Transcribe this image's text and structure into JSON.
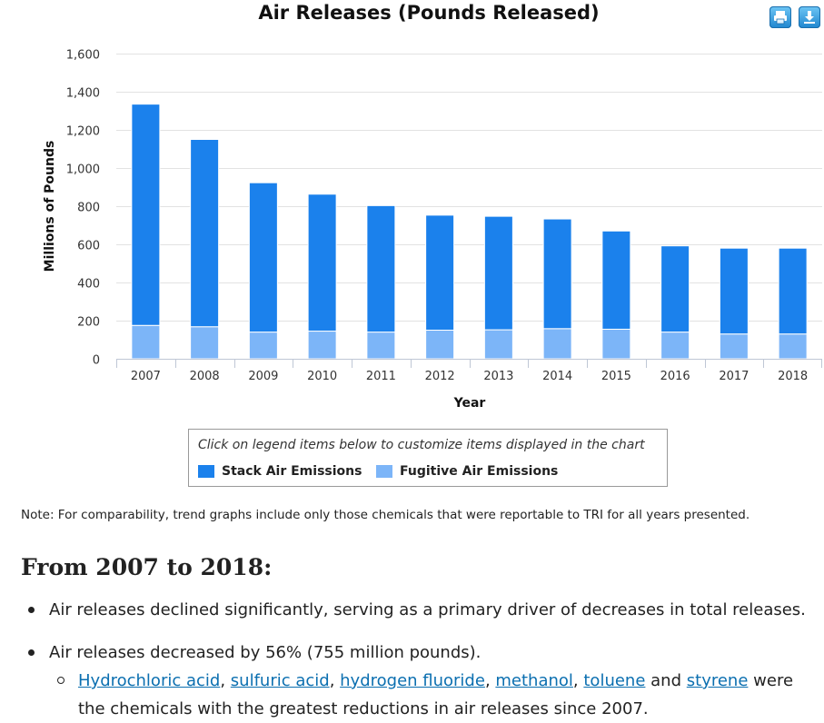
{
  "chart_data": {
    "type": "bar",
    "stacked": true,
    "title": "Air Releases (Pounds Released)",
    "xlabel": "Year",
    "ylabel": "Millions of Pounds",
    "ylim": [
      0,
      1600
    ],
    "yticks": [
      0,
      200,
      400,
      600,
      800,
      1000,
      1200,
      1400,
      1600
    ],
    "ytick_labels": [
      "0",
      "200",
      "400",
      "600",
      "800",
      "1,000",
      "1,200",
      "1,400",
      "1,600"
    ],
    "categories": [
      "2007",
      "2008",
      "2009",
      "2010",
      "2011",
      "2012",
      "2013",
      "2014",
      "2015",
      "2016",
      "2017",
      "2018"
    ],
    "series": [
      {
        "name": "Fugitive Air Emissions",
        "color": "#7cb5f8",
        "values": [
          175,
          168,
          140,
          145,
          140,
          150,
          152,
          158,
          155,
          140,
          130,
          130
        ]
      },
      {
        "name": "Stack Air Emissions",
        "color": "#1b81ec",
        "values": [
          1160,
          982,
          783,
          718,
          663,
          603,
          595,
          575,
          515,
          452,
          450,
          450
        ]
      }
    ],
    "grid": true,
    "legend_position": "bottom"
  },
  "toolbar": {
    "print_icon": "print-icon",
    "download_icon": "download-icon"
  },
  "legend": {
    "hint": "Click on legend items below to customize items displayed in the chart",
    "items": [
      {
        "label": "Stack Air Emissions",
        "color": "#1b81ec"
      },
      {
        "label": "Fugitive Air Emissions",
        "color": "#7cb5f8"
      }
    ]
  },
  "note": "Note: For comparability, trend graphs include only those chemicals that were reportable to TRI for all years presented.",
  "section": {
    "heading": "From 2007 to 2018:",
    "bullet1": "Air releases declined significantly, serving as a primary driver of decreases in total releases.",
    "bullet2": "Air releases decreased by 56% (755 million pounds).",
    "links": [
      "Hydrochloric acid",
      "sulfuric acid",
      "hydrogen fluoride",
      "methanol",
      "toluene",
      "styrene"
    ],
    "sub_and": "and",
    "sub_tail": "were the chemicals with the greatest reductions in air releases since 2007."
  }
}
